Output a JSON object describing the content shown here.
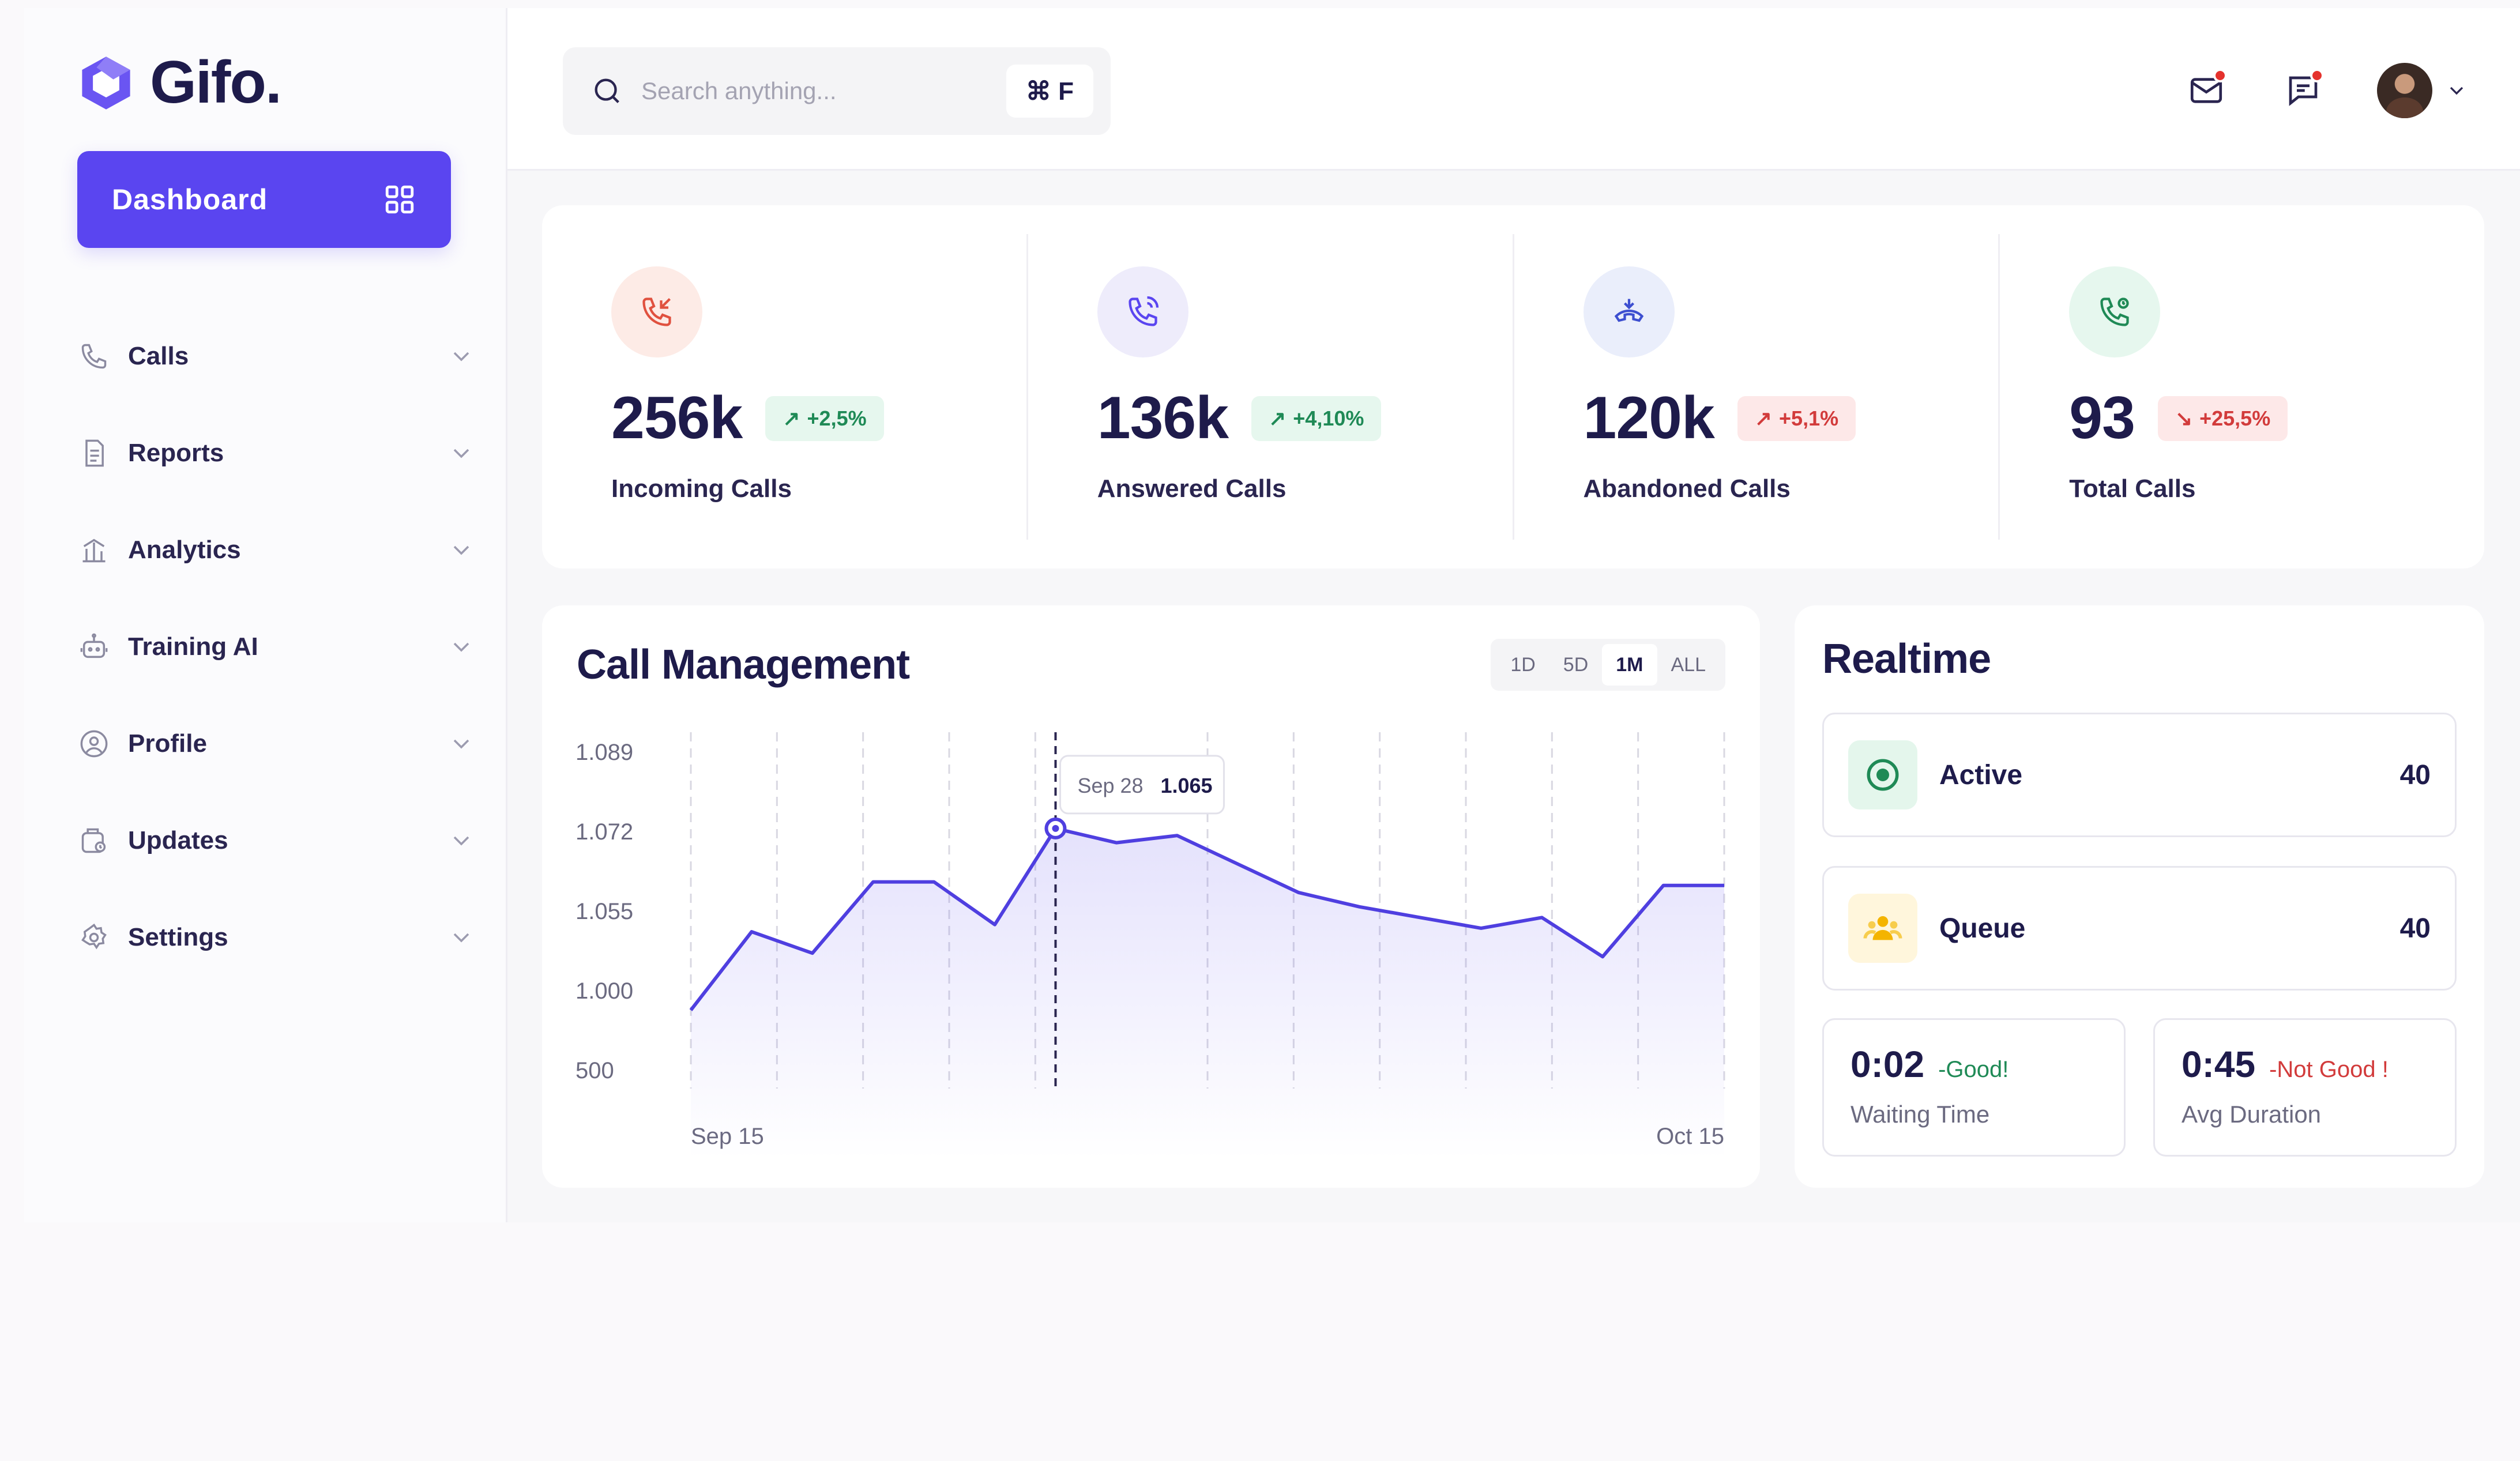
{
  "brand": {
    "name": "Gifo.",
    "accent": "#5a45f0"
  },
  "sidebar": {
    "dashboard_label": "Dashboard",
    "items": [
      {
        "label": "Calls",
        "icon": "phone-icon"
      },
      {
        "label": "Reports",
        "icon": "document-icon"
      },
      {
        "label": "Analytics",
        "icon": "analytics-icon"
      },
      {
        "label": "Training AI",
        "icon": "robot-icon"
      },
      {
        "label": "Profile",
        "icon": "user-circle-icon"
      },
      {
        "label": "Updates",
        "icon": "updates-icon"
      },
      {
        "label": "Settings",
        "icon": "gear-icon"
      }
    ]
  },
  "search": {
    "placeholder": "Search anything...",
    "shortcut": "⌘ F"
  },
  "stats": [
    {
      "value": "256k",
      "change": "+2,5%",
      "trend": "up",
      "label": "Incoming Calls",
      "icon": "incoming-call-icon",
      "tint": "#fdebe6",
      "icon_color": "#e0513f"
    },
    {
      "value": "136k",
      "change": "+4,10%",
      "trend": "up",
      "label": "Answered Calls",
      "icon": "answered-call-icon",
      "tint": "#eeecfb",
      "icon_color": "#5a45f0"
    },
    {
      "value": "120k",
      "change": "+5,1%",
      "trend": "down",
      "label": "Abandoned Calls",
      "icon": "hangup-call-icon",
      "tint": "#eaeefb",
      "icon_color": "#3d4fd0"
    },
    {
      "value": "93",
      "change": "+25,5%",
      "trend": "down",
      "label": "Total Calls",
      "icon": "total-call-icon",
      "tint": "#e6f7ee",
      "icon_color": "#1f8a56"
    }
  ],
  "call_management": {
    "title": "Call Management",
    "ranges": [
      "1D",
      "5D",
      "1M",
      "ALL"
    ],
    "active_range": "1M",
    "tooltip": {
      "date": "Sep 28",
      "value": "1.065"
    }
  },
  "chart_data": {
    "type": "area",
    "title": "Call Management",
    "y_tick_labels": [
      "1.089",
      "1.072",
      "1.055",
      "1.000",
      "500"
    ],
    "x_tick_labels": [
      "Sep 15",
      "Oct 15"
    ],
    "series": [
      {
        "values": [
          0.22,
          0.44,
          0.38,
          0.58,
          0.58,
          0.46,
          0.73,
          0.69,
          0.71,
          0.63,
          0.55,
          0.51,
          0.48,
          0.45,
          0.48,
          0.37,
          0.57,
          0.57
        ]
      }
    ],
    "value_note_unused": "",
    "highlight_index": 6,
    "grid": "vertical-dashed",
    "line_color": "#4f3fe0"
  },
  "realtime": {
    "title": "Realtime",
    "active": {
      "label": "Active",
      "value": "40"
    },
    "queue": {
      "label": "Queue",
      "value": "40"
    },
    "waiting": {
      "time": "0:02",
      "note": "-Good!",
      "label": "Waiting Time"
    },
    "duration": {
      "time": "0:45",
      "note": "-Not Good !",
      "label": "Avg Duration"
    }
  }
}
